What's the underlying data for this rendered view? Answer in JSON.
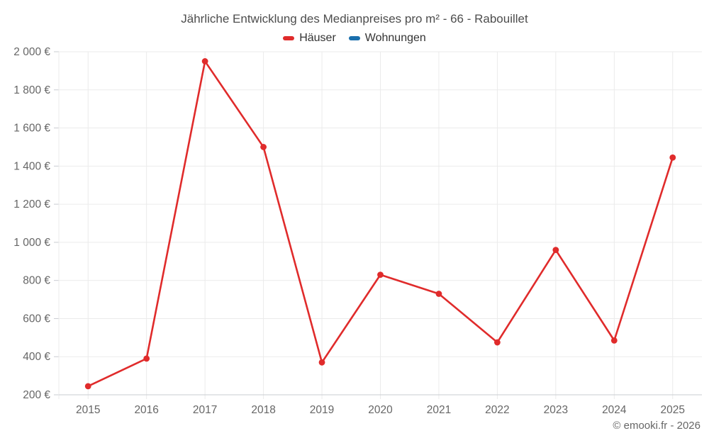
{
  "title": "Jährliche Entwicklung des Medianpreises pro m² - 66 - Rabouillet",
  "legend": [
    {
      "label": "Häuser",
      "color": "#e02b2b"
    },
    {
      "label": "Wohnungen",
      "color": "#1a6fad"
    }
  ],
  "footer": "© emooki.fr - 2026",
  "colors": {
    "background": "#ffffff",
    "grid": "#ebebeb",
    "axis_line": "#c9ccd1",
    "tick_label": "#666666",
    "title_text": "#4d4d4d",
    "legend_text": "#333333",
    "footer_text": "#666666"
  },
  "chart_data": {
    "type": "line",
    "title": "Jährliche Entwicklung des Medianpreises pro m² - 66 - Rabouillet",
    "categories": [
      "2015",
      "2016",
      "2017",
      "2018",
      "2019",
      "2020",
      "2021",
      "2022",
      "2023",
      "2024",
      "2025"
    ],
    "series": [
      {
        "name": "Häuser",
        "color": "#e02b2b",
        "values": [
          245,
          390,
          1950,
          1500,
          370,
          830,
          730,
          475,
          960,
          485,
          1445
        ]
      },
      {
        "name": "Wohnungen",
        "color": "#1a6fad",
        "values": []
      }
    ],
    "xlabel": "",
    "ylabel": "",
    "ylim": [
      200,
      2000
    ],
    "ytick_step": 200,
    "ytick_labels": [
      "200 €",
      "400 €",
      "600 €",
      "800 €",
      "1 000 €",
      "1 200 €",
      "1 400 €",
      "1 600 €",
      "1 800 €",
      "2 000 €"
    ],
    "grid": true,
    "legend_position": "top",
    "marker": "circle"
  }
}
